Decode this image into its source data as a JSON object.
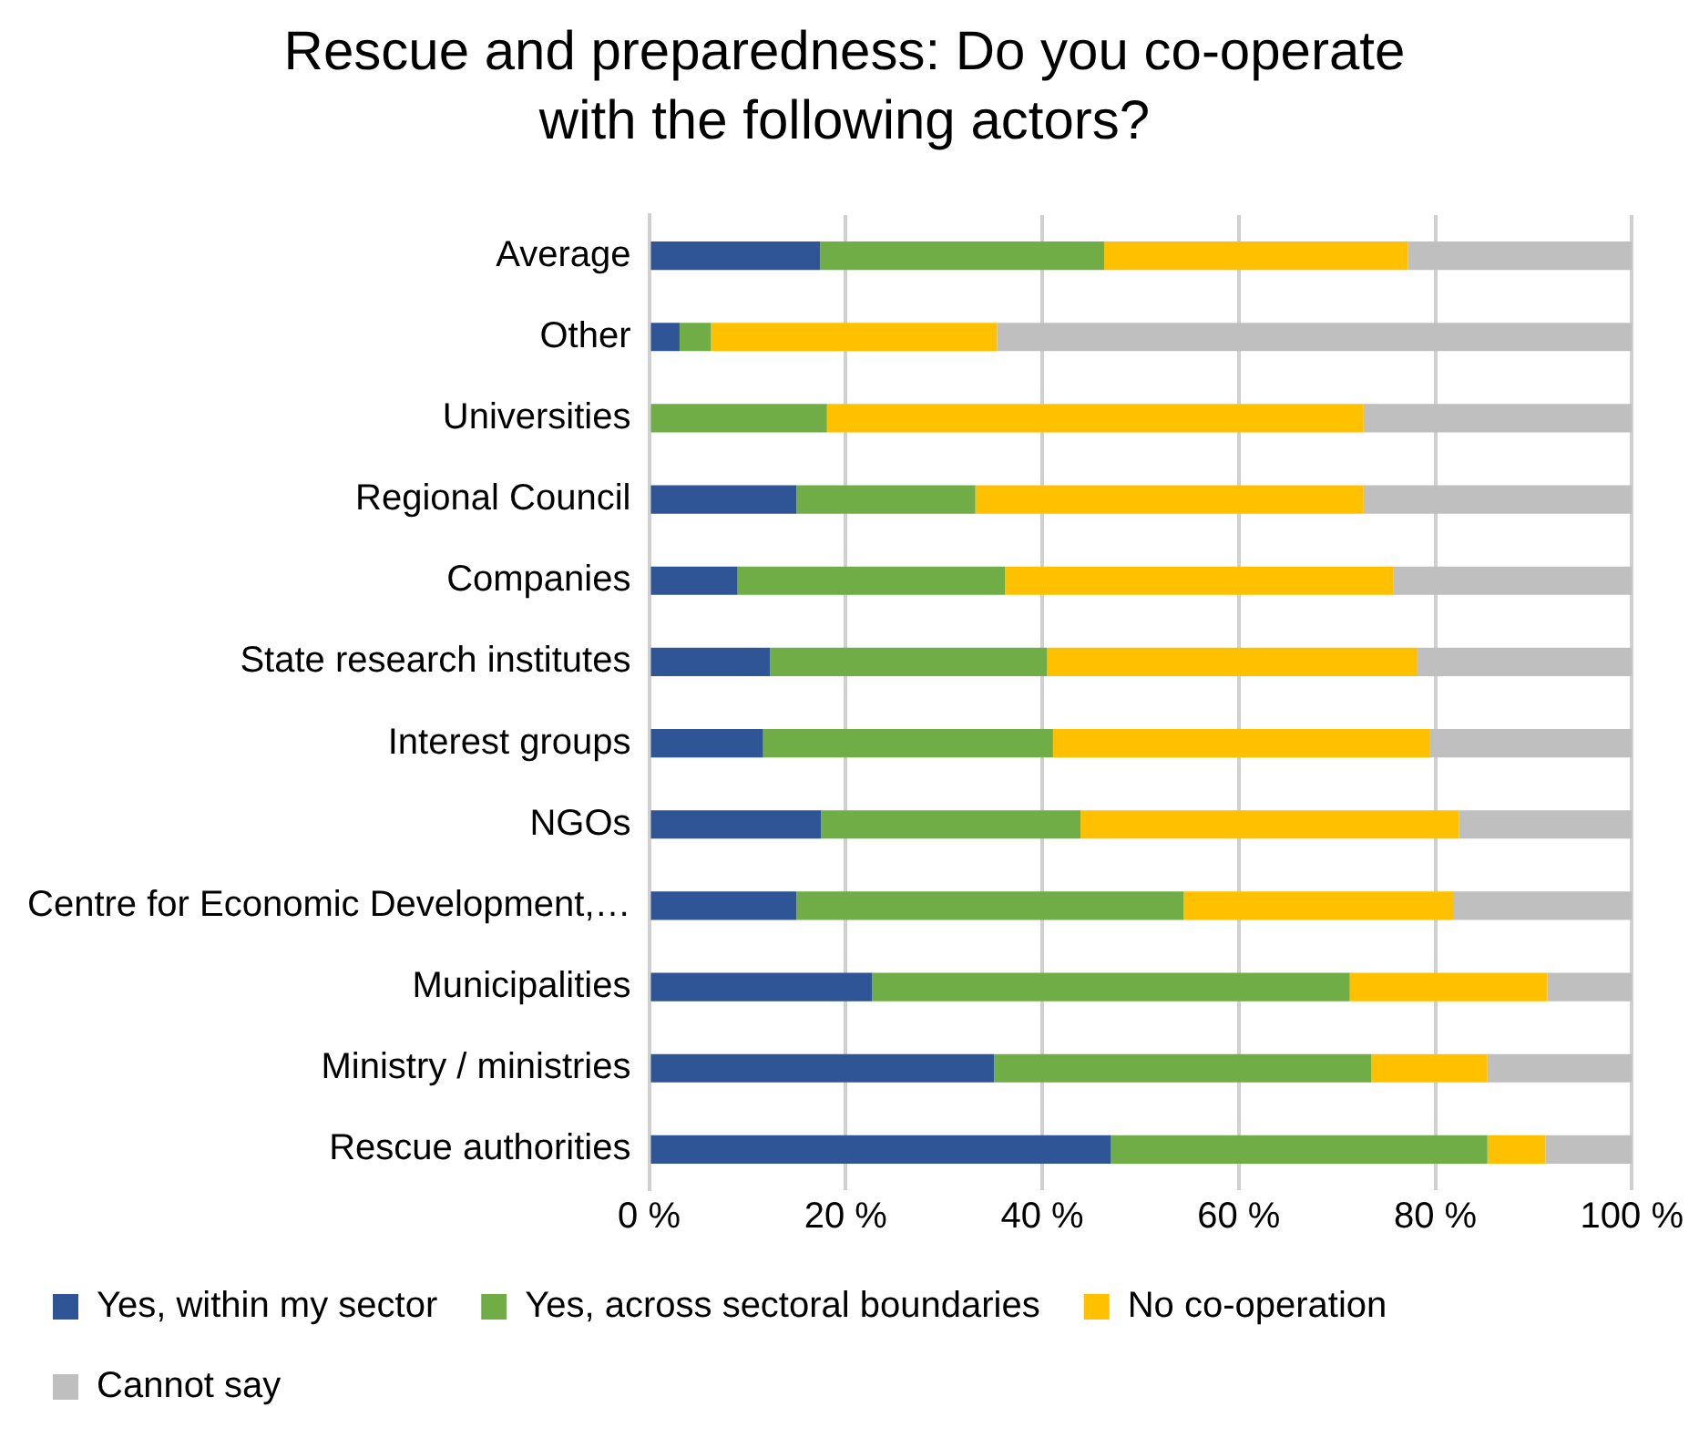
{
  "chart_data": {
    "type": "bar",
    "orientation": "horizontal",
    "stacked": true,
    "title": "Rescue and preparedness: Do you co-operate with the following actors?",
    "categories": [
      "Average",
      "Other",
      "Universities",
      "Regional Council",
      "Companies",
      "State research institutes",
      "Interest groups",
      "NGOs",
      "Centre for Economic Development,…",
      "Municipalities",
      "Ministry / ministries",
      "Rescue authorities"
    ],
    "series": [
      {
        "name": "Yes, within my sector",
        "color": "#2f5597",
        "values": [
          17.4,
          3.1,
          0,
          15.0,
          9.0,
          12.3,
          11.6,
          17.5,
          15.0,
          22.7,
          35.1,
          47.0
        ]
      },
      {
        "name": "Yes, across sectoral boundaries",
        "color": "#70ad47",
        "values": [
          28.9,
          3.2,
          18.1,
          18.2,
          27.2,
          28.2,
          29.5,
          26.4,
          39.4,
          48.6,
          38.4,
          38.3
        ]
      },
      {
        "name": "No co-operation",
        "color": "#ffc000",
        "values": [
          30.9,
          29.1,
          54.6,
          39.5,
          39.5,
          37.6,
          38.3,
          38.5,
          27.4,
          20.1,
          11.8,
          5.9
        ]
      },
      {
        "name": "Cannot say",
        "color": "#bfbfbf",
        "values": [
          22.8,
          64.6,
          27.3,
          27.3,
          24.3,
          21.9,
          20.6,
          17.6,
          18.2,
          8.6,
          14.7,
          8.8
        ]
      }
    ],
    "xlim": [
      0,
      100
    ],
    "xticks": [
      {
        "value": 0,
        "label": "0 %"
      },
      {
        "value": 20,
        "label": "20 %"
      },
      {
        "value": 40,
        "label": "40 %"
      },
      {
        "value": 60,
        "label": "60 %"
      },
      {
        "value": 80,
        "label": "80 %"
      },
      {
        "value": 100,
        "label": "100 %"
      }
    ],
    "grid": "x",
    "legend": "bottom"
  }
}
